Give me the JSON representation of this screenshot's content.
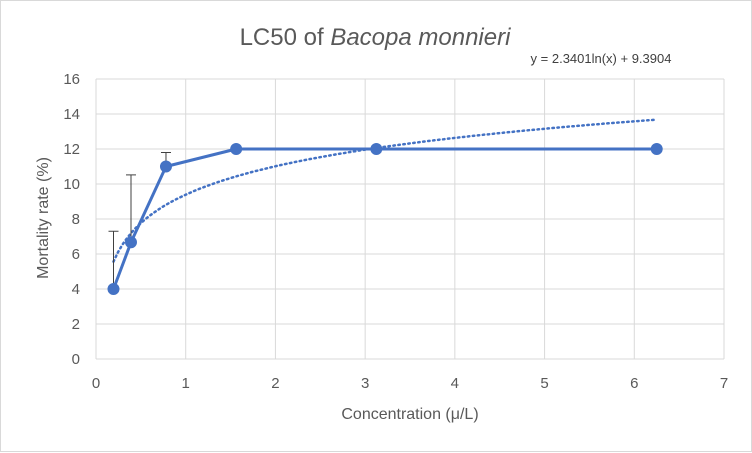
{
  "chart_data": {
    "type": "scatter",
    "title_prefix": "LC50 of ",
    "title_species": "Bacopa monnieri",
    "xlabel": "Concentration (μ/L)",
    "ylabel": "Mortality rate (%)",
    "xlim": [
      0,
      7
    ],
    "ylim": [
      0,
      16
    ],
    "xticks": [
      0,
      1,
      2,
      3,
      4,
      5,
      6,
      7
    ],
    "yticks": [
      0,
      2,
      4,
      6,
      8,
      10,
      12,
      14,
      16
    ],
    "grid": true,
    "legend": "none",
    "series": [
      {
        "x": [
          0.195,
          0.39,
          0.78,
          1.5625,
          3.125,
          6.25
        ],
        "y": [
          4,
          6.67,
          11,
          12,
          12,
          12
        ],
        "error_plus": [
          3.3,
          3.85,
          0.8,
          0,
          0,
          0
        ],
        "color": "#4472c4",
        "markers": true,
        "line": "solid"
      }
    ],
    "trendline": {
      "type": "logarithmic",
      "a": 2.3401,
      "b": 9.3904,
      "equation_label": "y = 2.3401ln(x) + 9.3904",
      "x_range": [
        0.195,
        6.25
      ],
      "color": "#4472c4",
      "line": "dotted"
    }
  }
}
